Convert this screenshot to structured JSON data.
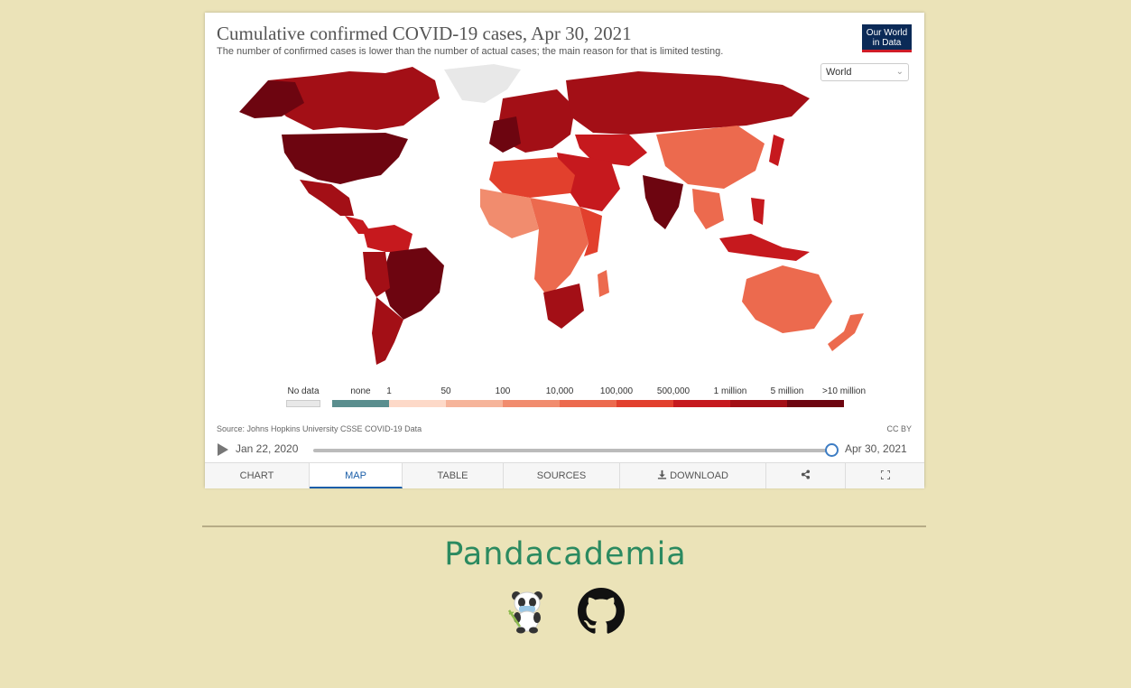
{
  "chart": {
    "title": "Cumulative confirmed COVID-19 cases, Apr 30, 2021",
    "subtitle": "The number of confirmed cases is lower than the number of actual cases; the main reason for that is limited testing.",
    "logo_line1": "Our World",
    "logo_line2": "in Data",
    "region_select": "World",
    "source": "Source: Johns Hopkins University CSSE COVID-19 Data",
    "license": "CC BY",
    "legend": {
      "no_data": "No data",
      "labels": [
        "none",
        "1",
        "50",
        "100",
        "10,000",
        "100,000",
        "500,000",
        "1 million",
        "5 million",
        ">10 million"
      ],
      "colors": [
        "#5a8e8e",
        "#fdd9c8",
        "#f6b49a",
        "#f18c6e",
        "#ec6a4e",
        "#e2402d",
        "#c6191e",
        "#a30f16",
        "#6d0510"
      ],
      "no_data_color": "#e8e8e8"
    },
    "timeline": {
      "start": "Jan 22, 2020",
      "end": "Apr 30, 2021",
      "progress": 1.0
    },
    "tabs": [
      {
        "label": "CHART"
      },
      {
        "label": "MAP"
      },
      {
        "label": "TABLE"
      },
      {
        "label": "SOURCES"
      },
      {
        "label": "DOWNLOAD"
      },
      {
        "label": ""
      },
      {
        "label": ""
      }
    ],
    "active_tab": "MAP"
  },
  "footer": {
    "brand": "Pandacademia"
  },
  "icons": {
    "play": "play-icon",
    "download": "download-icon",
    "share": "share-icon",
    "fullscreen": "fullscreen-icon",
    "panda": "panda-icon",
    "github": "github-icon"
  }
}
